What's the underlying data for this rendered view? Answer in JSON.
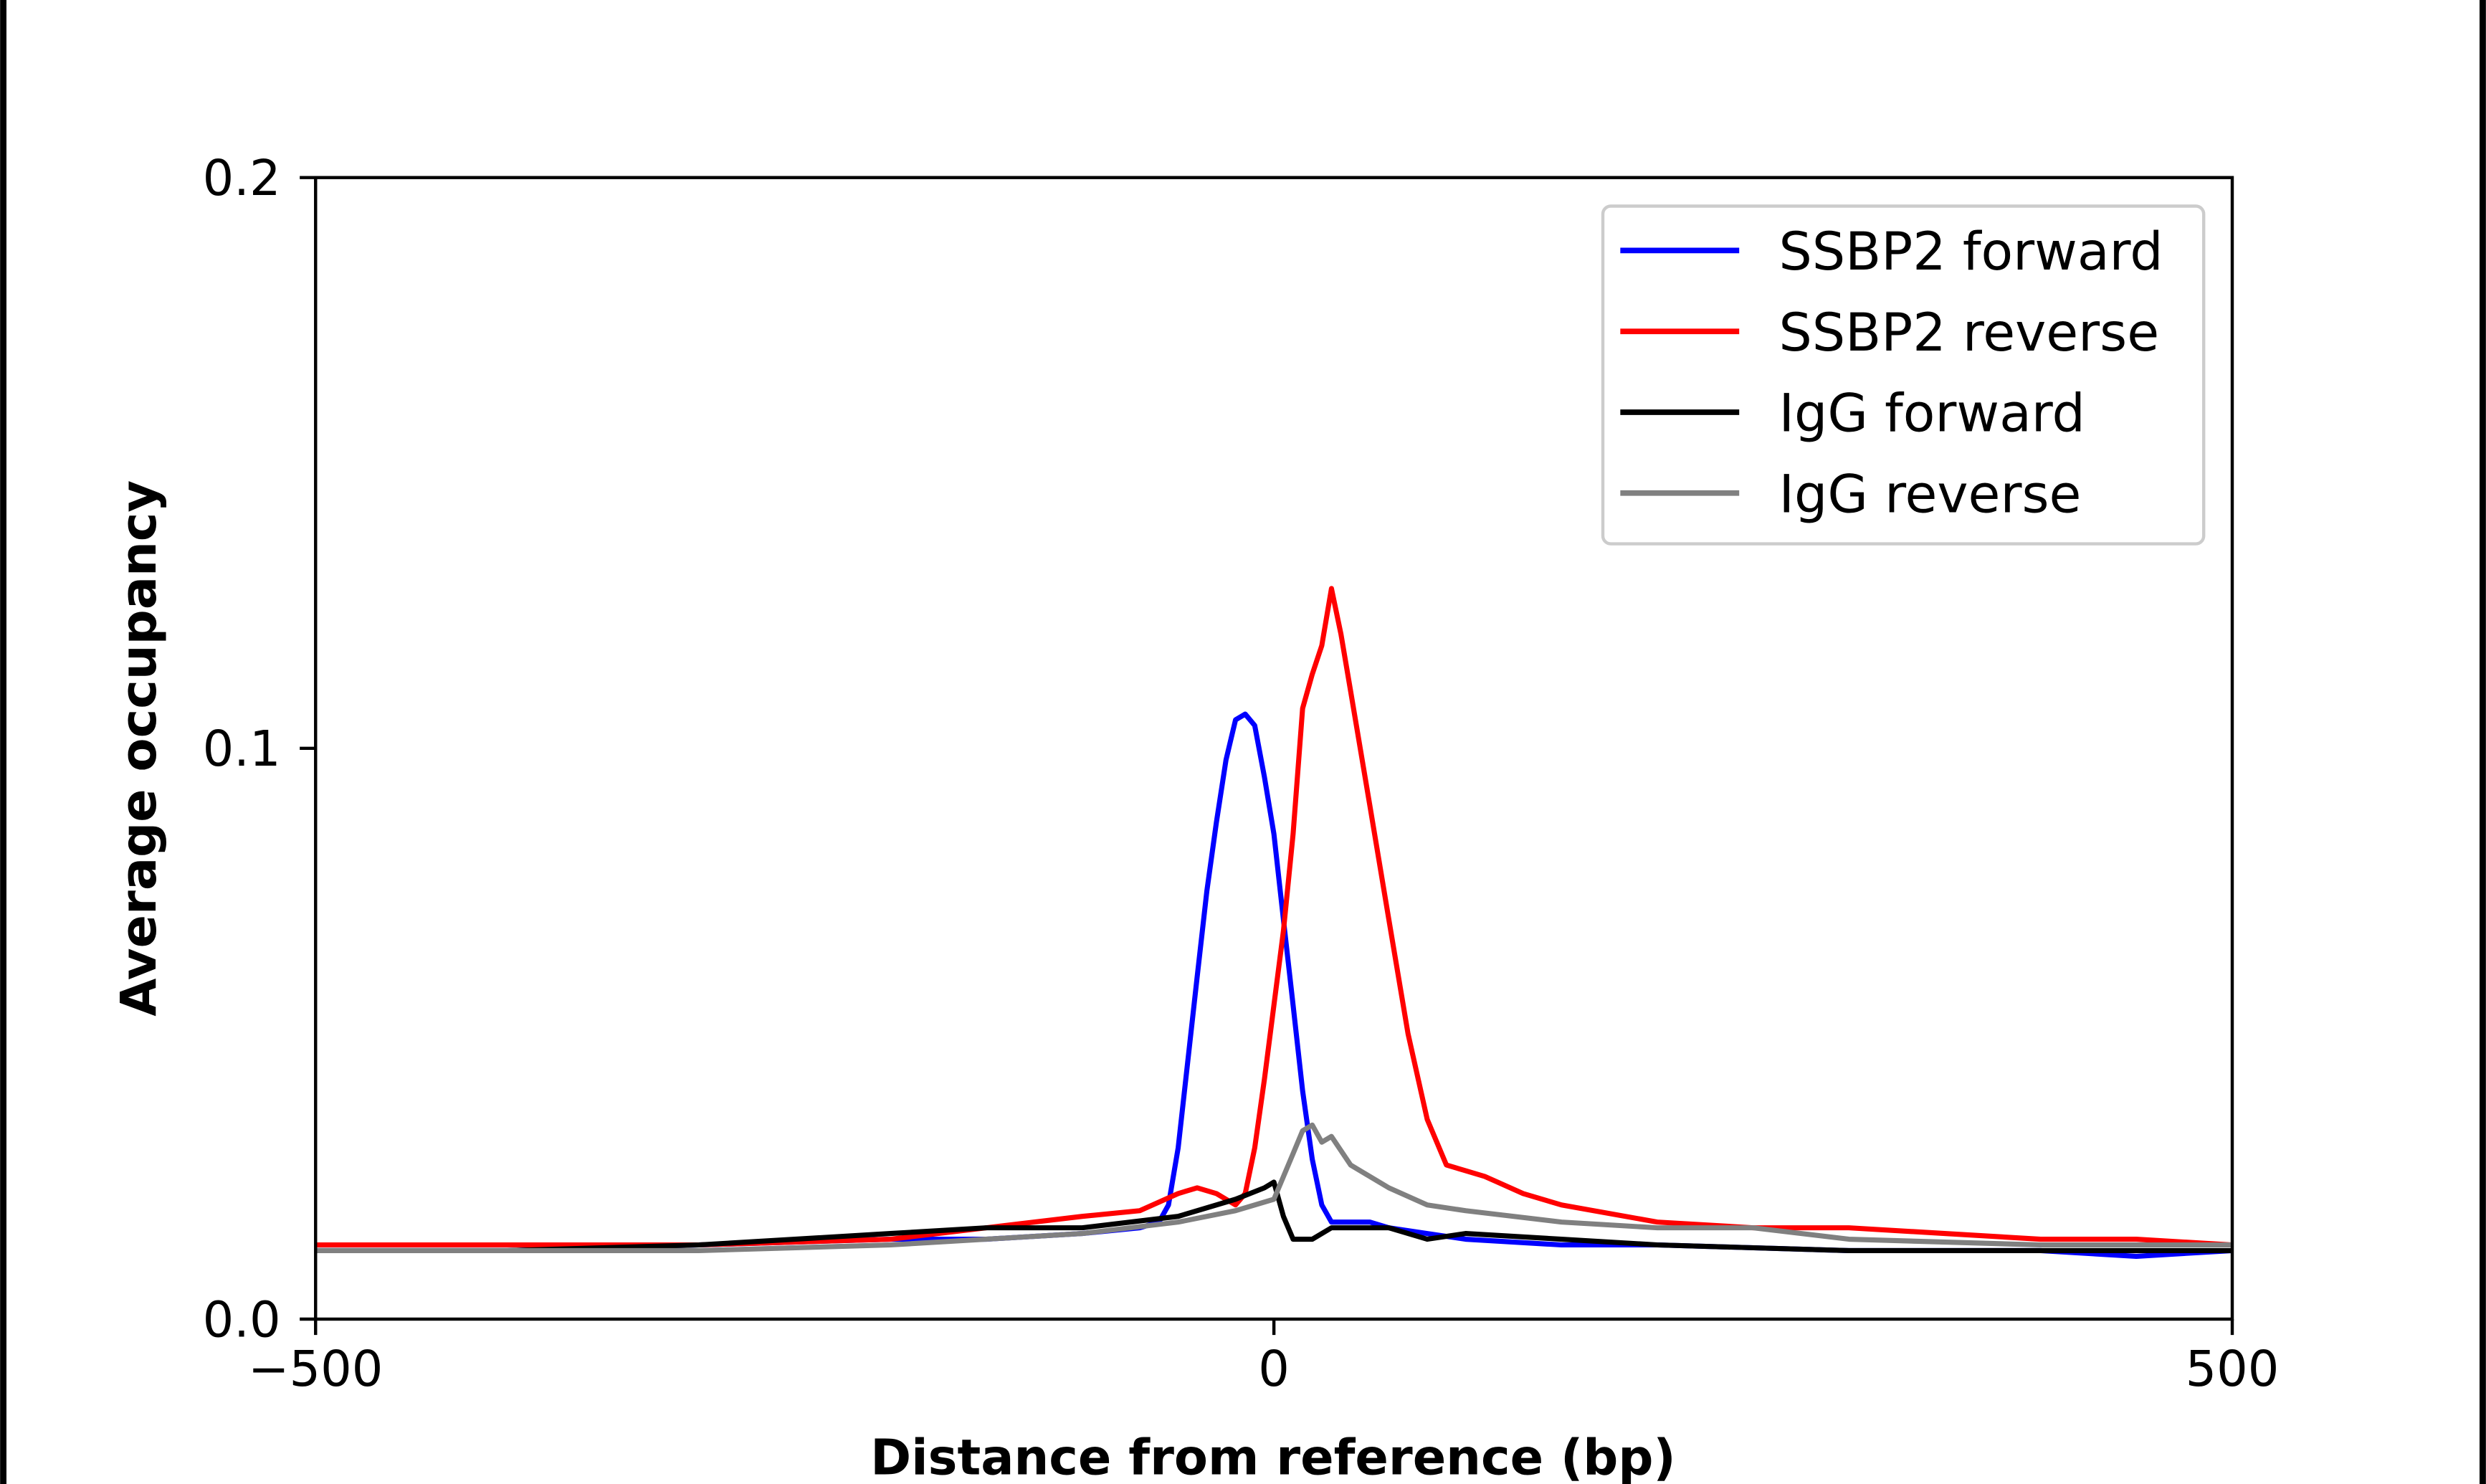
{
  "chart_data": {
    "type": "line",
    "title": "",
    "xlabel": "Distance from reference (bp)",
    "ylabel": "Average occupancy",
    "xlim": [
      -500,
      500
    ],
    "ylim": [
      0,
      0.2
    ],
    "xticks": [
      {
        "value": -500,
        "label": "−500"
      },
      {
        "value": 0,
        "label": "0"
      },
      {
        "value": 500,
        "label": "500"
      }
    ],
    "yticks": [
      {
        "value": 0,
        "label": "0.0"
      },
      {
        "value": 0.1,
        "label": "0.1"
      },
      {
        "value": 0.2,
        "label": "0.2"
      }
    ],
    "grid": false,
    "legend_position": "top-right",
    "series": [
      {
        "name": "SSBP2 forward",
        "color": "#0000ff",
        "x": [
          -500,
          -400,
          -300,
          -200,
          -150,
          -100,
          -70,
          -60,
          -55,
          -50,
          -45,
          -40,
          -35,
          -30,
          -25,
          -20,
          -15,
          -10,
          -5,
          0,
          5,
          10,
          15,
          20,
          25,
          30,
          40,
          50,
          60,
          80,
          100,
          150,
          200,
          300,
          400,
          450,
          500
        ],
        "y": [
          0.012,
          0.012,
          0.013,
          0.014,
          0.014,
          0.015,
          0.016,
          0.017,
          0.02,
          0.03,
          0.045,
          0.06,
          0.075,
          0.087,
          0.098,
          0.105,
          0.106,
          0.104,
          0.095,
          0.085,
          0.07,
          0.055,
          0.04,
          0.028,
          0.02,
          0.017,
          0.017,
          0.017,
          0.016,
          0.015,
          0.014,
          0.013,
          0.013,
          0.012,
          0.012,
          0.011,
          0.012
        ]
      },
      {
        "name": "SSBP2 reverse",
        "color": "#ff0000",
        "x": [
          -500,
          -400,
          -300,
          -200,
          -150,
          -100,
          -70,
          -50,
          -40,
          -30,
          -20,
          -15,
          -10,
          -5,
          0,
          5,
          10,
          15,
          20,
          25,
          30,
          35,
          40,
          50,
          60,
          70,
          80,
          90,
          100,
          110,
          130,
          150,
          200,
          250,
          300,
          350,
          400,
          450,
          500
        ],
        "y": [
          0.013,
          0.013,
          0.013,
          0.014,
          0.016,
          0.018,
          0.019,
          0.022,
          0.023,
          0.022,
          0.02,
          0.022,
          0.03,
          0.042,
          0.055,
          0.068,
          0.085,
          0.107,
          0.113,
          0.118,
          0.128,
          0.12,
          0.11,
          0.09,
          0.07,
          0.05,
          0.035,
          0.027,
          0.026,
          0.025,
          0.022,
          0.02,
          0.017,
          0.016,
          0.016,
          0.015,
          0.014,
          0.014,
          0.013
        ]
      },
      {
        "name": "IgG forward",
        "color": "#000000",
        "x": [
          -500,
          -400,
          -300,
          -250,
          -200,
          -150,
          -100,
          -50,
          -20,
          -5,
          0,
          5,
          10,
          20,
          30,
          60,
          80,
          100,
          150,
          200,
          300,
          400,
          500
        ],
        "y": [
          0.012,
          0.012,
          0.013,
          0.014,
          0.015,
          0.016,
          0.016,
          0.018,
          0.021,
          0.023,
          0.024,
          0.018,
          0.014,
          0.014,
          0.016,
          0.016,
          0.014,
          0.015,
          0.014,
          0.013,
          0.012,
          0.012,
          0.012
        ]
      },
      {
        "name": "IgG reverse",
        "color": "#808080",
        "x": [
          -500,
          -400,
          -300,
          -200,
          -100,
          -50,
          -20,
          0,
          10,
          15,
          20,
          25,
          30,
          40,
          60,
          80,
          100,
          150,
          200,
          250,
          300,
          400,
          500
        ],
        "y": [
          0.012,
          0.012,
          0.012,
          0.013,
          0.015,
          0.017,
          0.019,
          0.021,
          0.029,
          0.033,
          0.034,
          0.031,
          0.032,
          0.027,
          0.023,
          0.02,
          0.019,
          0.017,
          0.016,
          0.016,
          0.014,
          0.013,
          0.013
        ]
      }
    ]
  }
}
